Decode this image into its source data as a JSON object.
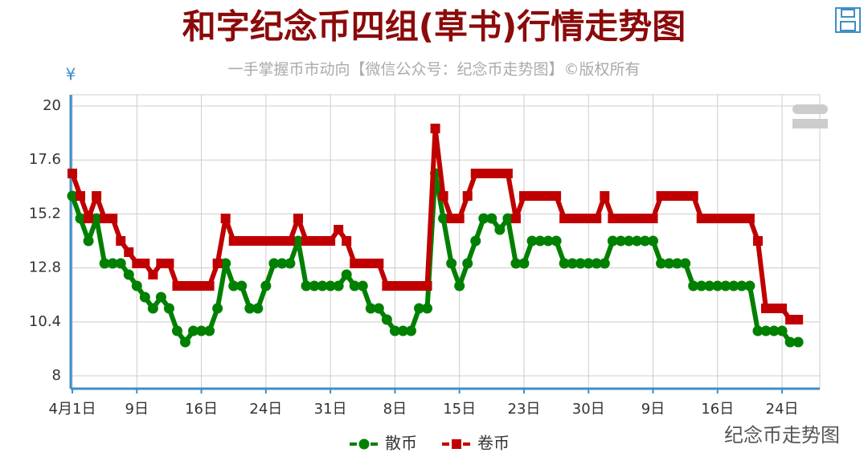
{
  "chart_data": {
    "type": "line",
    "title": "和字纪念币四组(草书)行情走势图",
    "subtitle": "一手掌握币市动向【微信公众号：纪念币走势图】©版权所有",
    "y_axis_label": "¥",
    "watermark": "纪念币走势图",
    "categories": [
      "4月1日",
      null,
      null,
      null,
      null,
      null,
      null,
      null,
      "9日",
      null,
      null,
      null,
      null,
      null,
      null,
      null,
      "16日",
      null,
      null,
      null,
      null,
      null,
      null,
      null,
      "24日",
      null,
      null,
      null,
      null,
      null,
      null,
      null,
      "31日",
      null,
      null,
      null,
      null,
      null,
      null,
      null,
      "8日",
      null,
      null,
      null,
      null,
      null,
      null,
      null,
      "15日",
      null,
      null,
      null,
      null,
      null,
      null,
      null,
      "23日",
      null,
      null,
      null,
      null,
      null,
      null,
      null,
      "30日",
      null,
      null,
      null,
      null,
      null,
      null,
      null,
      "9日",
      null,
      null,
      null,
      null,
      null,
      null,
      null,
      "16日",
      null,
      null,
      null,
      null,
      null,
      null,
      null,
      "24日",
      null,
      null,
      null,
      null
    ],
    "series": [
      {
        "name": "散币",
        "color": "#008000",
        "marker": "circle",
        "values": [
          16,
          15,
          14,
          15,
          13,
          13,
          13,
          12.5,
          12,
          11.5,
          11,
          11.5,
          11,
          10,
          9.5,
          10,
          10,
          10,
          11,
          13,
          12,
          12,
          11,
          11,
          12,
          13,
          13,
          13,
          14,
          12,
          12,
          12,
          12,
          12,
          12.5,
          12,
          12,
          11,
          11,
          10.5,
          10,
          10,
          10,
          11,
          11,
          17,
          15,
          13,
          12,
          13,
          14,
          15,
          15,
          14.5,
          15,
          13,
          13,
          14,
          14,
          14,
          14,
          13,
          13,
          13,
          13,
          13,
          13,
          14,
          14,
          14,
          14,
          14,
          14,
          13,
          13,
          13,
          13,
          12,
          12,
          12,
          12,
          12,
          12,
          12,
          12,
          10,
          10,
          10,
          10,
          9.5,
          9.5,
          null,
          null
        ]
      },
      {
        "name": "卷币",
        "color": "#c00000",
        "marker": "square",
        "values": [
          17,
          16,
          15,
          16,
          15,
          15,
          14,
          13.5,
          13,
          13,
          12.5,
          13,
          13,
          12,
          12,
          12,
          12,
          12,
          13,
          15,
          14,
          14,
          14,
          14,
          14,
          14,
          14,
          14,
          15,
          14,
          14,
          14,
          14,
          14.5,
          14,
          13,
          13,
          13,
          13,
          12,
          12,
          12,
          12,
          12,
          12,
          19,
          16,
          15,
          15,
          16,
          17,
          17,
          17,
          17,
          17,
          15,
          16,
          16,
          16,
          16,
          16,
          15,
          15,
          15,
          15,
          15,
          16,
          15,
          15,
          15,
          15,
          15,
          15,
          16,
          16,
          16,
          16,
          16,
          15,
          15,
          15,
          15,
          15,
          15,
          15,
          14,
          11,
          11,
          11,
          10.5,
          10.5,
          null,
          null
        ]
      }
    ],
    "ylim": [
      7.43,
      20.5
    ],
    "yticks": [
      8,
      10.4,
      12.8,
      15.2,
      17.6,
      20
    ],
    "grid": true,
    "legend": "bottom"
  }
}
